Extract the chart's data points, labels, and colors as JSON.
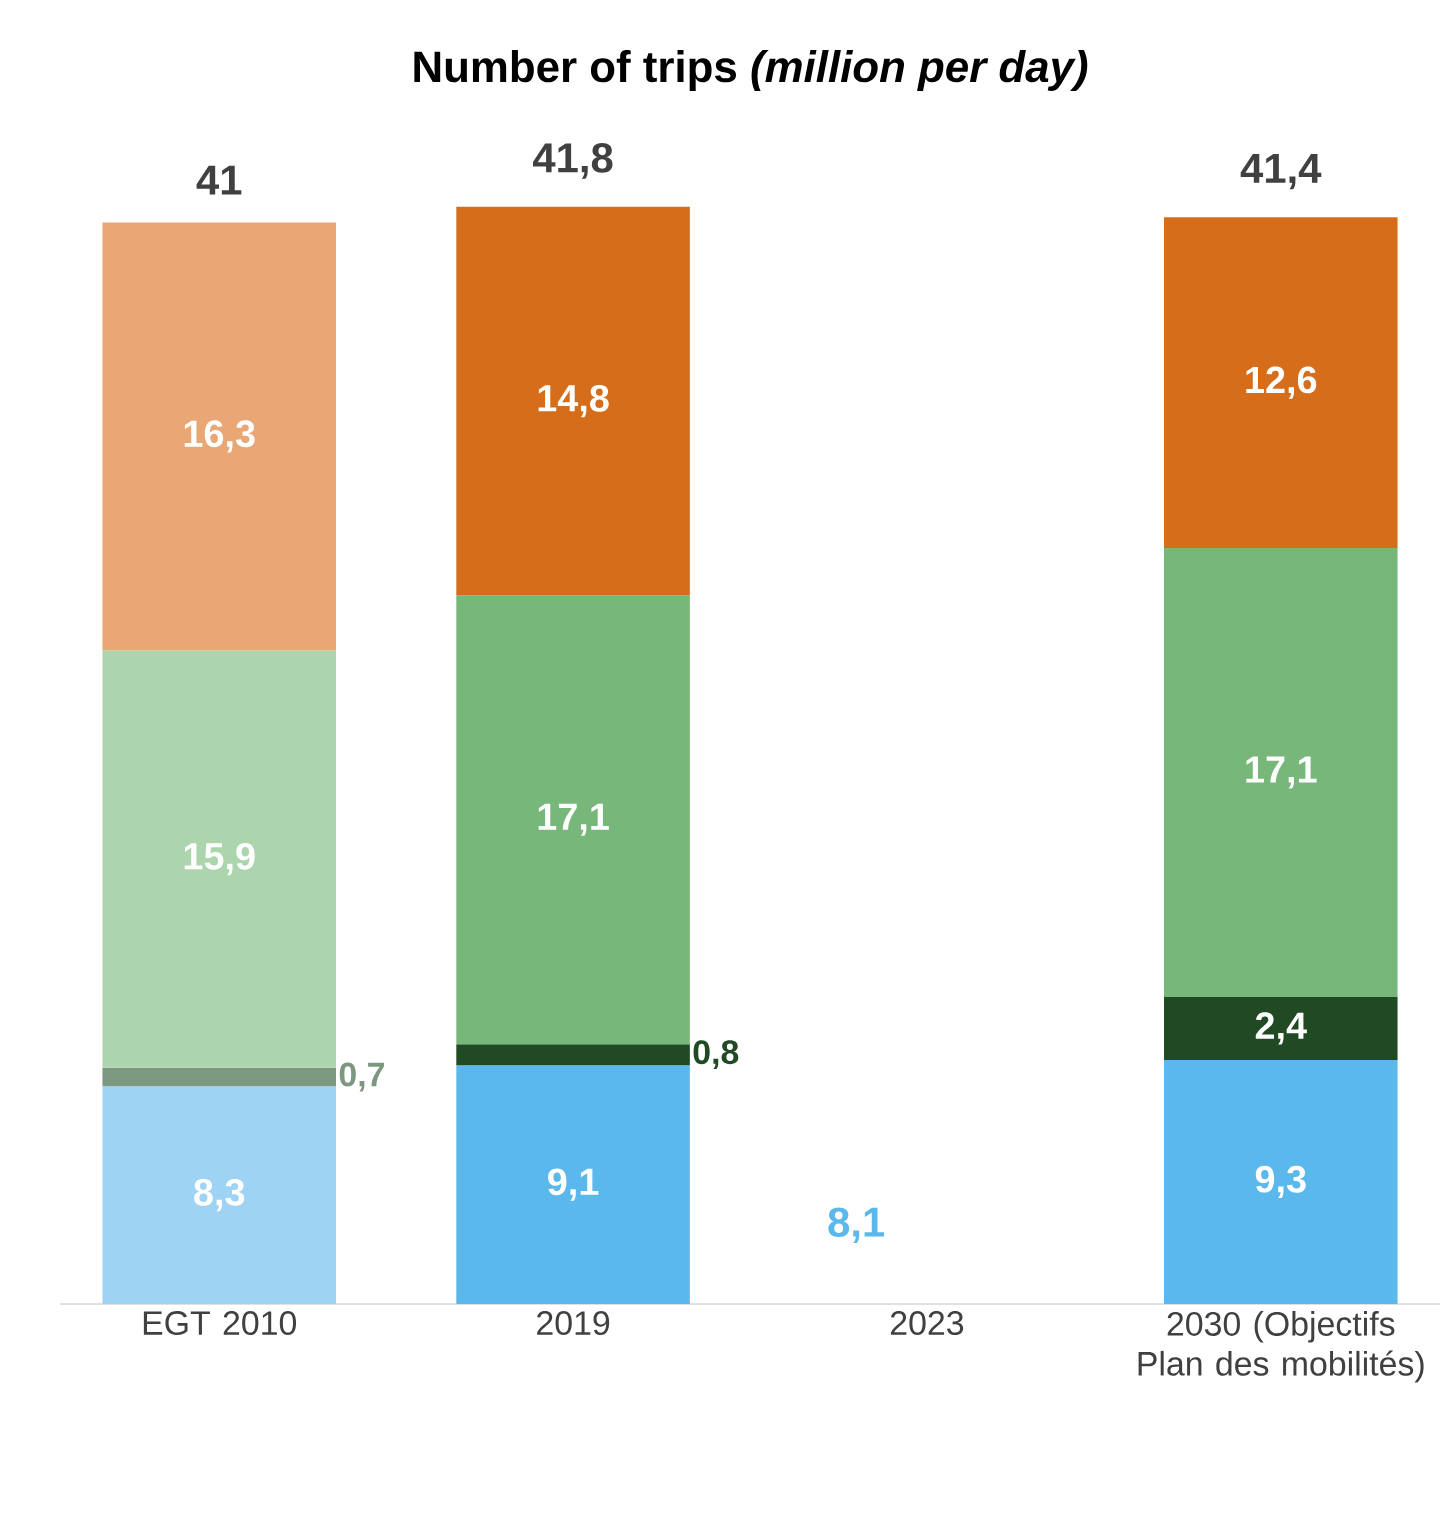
{
  "chart_data": {
    "type": "bar",
    "stacked": true,
    "title": "Number of trips *(million per day)*",
    "categories": [
      "EGT 2010",
      "2019",
      "2023",
      "2030 (Objectifs Plan des mobilités)"
    ],
    "series": [
      {
        "color": "#5bb8ec",
        "colors": [
          "#9fd3f3",
          null,
          null,
          null
        ],
        "values": [
          8.3,
          9.1,
          null,
          9.3
        ],
        "value_labels": [
          "8,3",
          "9,1",
          null,
          "9,3"
        ]
      },
      {
        "color": "#1f4a24",
        "colors": [
          "#7d9880",
          null,
          null,
          null
        ],
        "values": [
          0.7,
          0.8,
          null,
          2.4
        ],
        "value_labels": [
          "0,7",
          "0,8",
          null,
          "2,4"
        ]
      },
      {
        "color": "#77b77a",
        "colors": [
          "#acd5ad",
          null,
          null,
          null
        ],
        "values": [
          15.9,
          17.1,
          null,
          17.1
        ],
        "value_labels": [
          "15,9",
          "17,1",
          null,
          "17,1"
        ]
      },
      {
        "color": "#d66d1a",
        "colors": [
          "#e8a774",
          null,
          null,
          null
        ],
        "values": [
          16.3,
          14.8,
          null,
          12.6
        ],
        "value_labels": [
          "16,3",
          "14,8",
          null,
          "12,6"
        ]
      }
    ],
    "totals": [
      "41",
      "41,8",
      null,
      "41,4"
    ],
    "annotations": [
      "8,1"
    ]
  }
}
